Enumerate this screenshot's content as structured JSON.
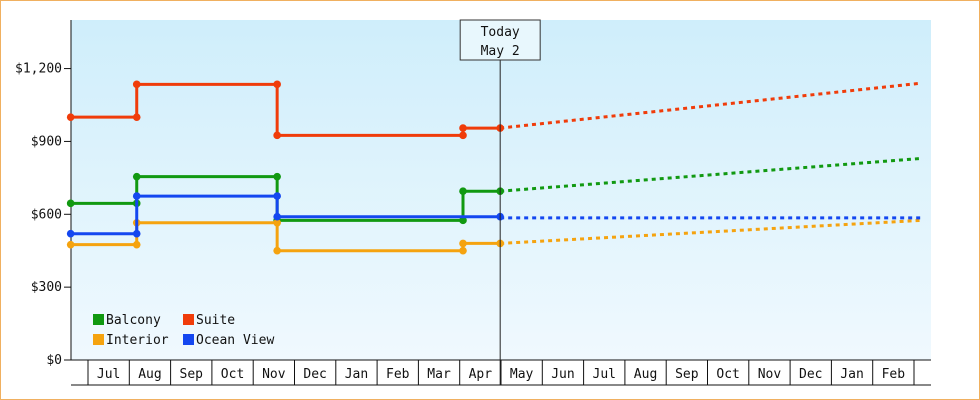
{
  "chart_data": {
    "type": "line",
    "subtype": "step-with-forecast",
    "y_ticks": [
      "$0",
      "$300",
      "$600",
      "$900",
      "$1,200"
    ],
    "ylim": [
      0,
      1400
    ],
    "x_months": [
      "Jul",
      "Aug",
      "Sep",
      "Oct",
      "Nov",
      "Dec",
      "Jan",
      "Feb",
      "Mar",
      "Apr",
      "May",
      "Jun",
      "Jul",
      "Aug",
      "Sep",
      "Oct",
      "Nov",
      "Dec",
      "Jan",
      "Feb"
    ],
    "today_marker": {
      "line1": "Today",
      "line2": "May 2"
    },
    "grid": false,
    "legend": {
      "placement": "bottom-left"
    },
    "colors": {
      "Balcony": "#119911",
      "Suite": "#f03c0a",
      "Interior": "#f5a30f",
      "Ocean View": "#1447f0"
    },
    "background": {
      "top": "#cfeefb",
      "bottom": "#f0f9fe"
    },
    "series": [
      {
        "name": "Balcony",
        "steps": [
          {
            "x": 0.0,
            "y": 645
          },
          {
            "x": 1.6,
            "y": 755
          },
          {
            "x": 5.0,
            "y": 575
          },
          {
            "x": 9.5,
            "y": 695
          }
        ],
        "end_actual": 10.4,
        "forecast": [
          {
            "x": 10.4,
            "y": 695
          },
          {
            "x": 20.6,
            "y": 830
          }
        ]
      },
      {
        "name": "Suite",
        "steps": [
          {
            "x": 0.0,
            "y": 1000
          },
          {
            "x": 1.6,
            "y": 1135
          },
          {
            "x": 5.0,
            "y": 925
          },
          {
            "x": 9.5,
            "y": 955
          }
        ],
        "end_actual": 10.4,
        "forecast": [
          {
            "x": 10.4,
            "y": 955
          },
          {
            "x": 20.6,
            "y": 1140
          }
        ]
      },
      {
        "name": "Interior",
        "steps": [
          {
            "x": 0.0,
            "y": 475
          },
          {
            "x": 1.6,
            "y": 565
          },
          {
            "x": 5.0,
            "y": 450
          },
          {
            "x": 9.5,
            "y": 480
          }
        ],
        "end_actual": 10.4,
        "forecast": [
          {
            "x": 10.4,
            "y": 480
          },
          {
            "x": 20.6,
            "y": 575
          }
        ]
      },
      {
        "name": "Ocean View",
        "steps": [
          {
            "x": 0.0,
            "y": 520
          },
          {
            "x": 1.6,
            "y": 675
          },
          {
            "x": 5.0,
            "y": 590
          }
        ],
        "end_actual": 10.4,
        "forecast": [
          {
            "x": 10.4,
            "y": 585
          },
          {
            "x": 20.6,
            "y": 585
          }
        ]
      }
    ],
    "today_x": 10.4
  }
}
